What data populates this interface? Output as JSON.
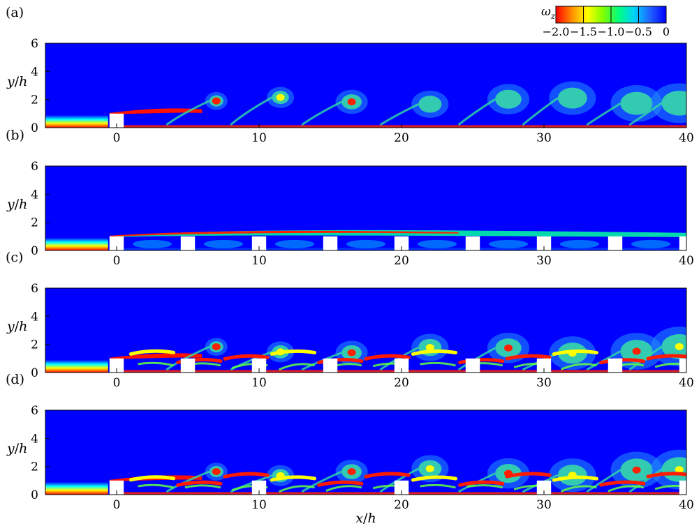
{
  "colorbar": {
    "symbol": "ω",
    "subscript": "z",
    "ticks": [
      {
        "value": -2.0,
        "label": "−2.0"
      },
      {
        "value": -1.5,
        "label": "−1.5"
      },
      {
        "value": -1.0,
        "label": "−1.0"
      },
      {
        "value": -0.5,
        "label": "−0.5"
      },
      {
        "value": 0,
        "label": "0"
      }
    ],
    "range": [
      -2.0,
      0
    ],
    "colors": [
      "#ff0000",
      "#ff8c00",
      "#ffff00",
      "#80ff00",
      "#00ff80",
      "#00d0ff",
      "#2060ff",
      "#0000ff"
    ]
  },
  "chart_data": [
    {
      "type": "heatmap",
      "panel_label": "(a)",
      "ylabel_var": "y",
      "ylabel_den": "h",
      "xlim": [
        -5,
        40
      ],
      "ylim": [
        0,
        6
      ],
      "xticks": [
        0,
        10,
        20,
        30,
        40
      ],
      "yticks": [
        0,
        2,
        4,
        6
      ],
      "blocks_x": [
        0
      ]
    },
    {
      "type": "heatmap",
      "panel_label": "(b)",
      "ylabel_var": "y",
      "ylabel_den": "h",
      "xlim": [
        -5,
        40
      ],
      "ylim": [
        0,
        6
      ],
      "xticks": [
        0,
        10,
        20,
        30,
        40
      ],
      "yticks": [
        0,
        2,
        4,
        6
      ],
      "blocks_x": [
        0,
        5,
        10,
        15,
        20,
        25,
        30,
        35,
        40
      ]
    },
    {
      "type": "heatmap",
      "panel_label": "(c)",
      "ylabel_var": "y",
      "ylabel_den": "h",
      "xlim": [
        -5,
        40
      ],
      "ylim": [
        0,
        6
      ],
      "xticks": [
        0,
        10,
        20,
        30,
        40
      ],
      "yticks": [
        0,
        2,
        4,
        6
      ],
      "blocks_x": [
        0,
        5,
        10,
        15,
        20,
        25,
        30,
        35,
        40
      ]
    },
    {
      "type": "heatmap",
      "panel_label": "(d)",
      "ylabel_var": "y",
      "ylabel_den": "h",
      "xlabel_var": "x",
      "xlabel_den": "h",
      "xlim": [
        -5,
        40
      ],
      "ylim": [
        0,
        6
      ],
      "xticks": [
        0,
        10,
        20,
        30,
        40
      ],
      "yticks": [
        0,
        2,
        4,
        6
      ],
      "blocks_x": [
        0,
        10,
        20,
        30,
        40
      ]
    }
  ]
}
